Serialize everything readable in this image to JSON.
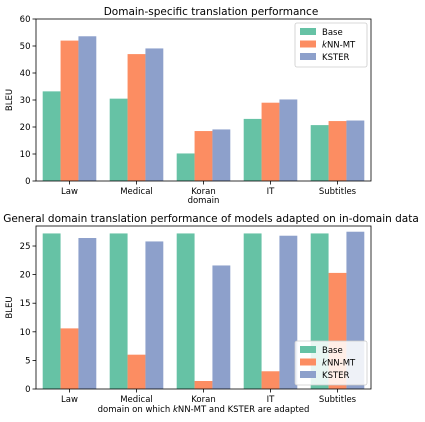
{
  "chart_data": [
    {
      "type": "bar",
      "title": "Domain-specific translation performance",
      "xlabel": "domain",
      "ylabel": "BLEU",
      "categories": [
        "Law",
        "Medical",
        "Koran",
        "IT",
        "Subtitles"
      ],
      "ylim": [
        0,
        60
      ],
      "yticks": [
        0,
        10,
        20,
        30,
        40,
        50,
        60
      ],
      "legend_position": "top-right",
      "series": [
        {
          "name": "Base",
          "color": "#66c2a5",
          "values": [
            33.2,
            30.5,
            10.2,
            23.0,
            20.7
          ]
        },
        {
          "name": "kNN-MT",
          "legend_italic_prefix": "k",
          "legend_rest": "NN-MT",
          "color": "#fc8d62",
          "values": [
            52.0,
            47.0,
            18.5,
            29.0,
            22.2
          ]
        },
        {
          "name": "KSTER",
          "color": "#8da0cb",
          "values": [
            53.6,
            49.1,
            19.1,
            30.2,
            22.4
          ]
        }
      ]
    },
    {
      "type": "bar",
      "title": "General domain translation performance of models adapted on in-domain data",
      "xlabel_parts": [
        "domain on which ",
        "k",
        "NN-MT and KSTER are adapted"
      ],
      "ylabel": "BLEU",
      "categories": [
        "Law",
        "Medical",
        "Koran",
        "IT",
        "Subtitles"
      ],
      "ylim": [
        0,
        28.5
      ],
      "yticks": [
        0,
        5,
        10,
        15,
        20,
        25
      ],
      "legend_position": "bottom-right",
      "series": [
        {
          "name": "Base",
          "color": "#66c2a5",
          "values": [
            27.2,
            27.2,
            27.2,
            27.2,
            27.2
          ]
        },
        {
          "name": "kNN-MT",
          "legend_italic_prefix": "k",
          "legend_rest": "NN-MT",
          "color": "#fc8d62",
          "values": [
            10.6,
            6.0,
            1.4,
            3.1,
            20.3
          ]
        },
        {
          "name": "KSTER",
          "color": "#8da0cb",
          "values": [
            26.4,
            25.8,
            21.6,
            26.8,
            27.5
          ]
        }
      ]
    }
  ]
}
